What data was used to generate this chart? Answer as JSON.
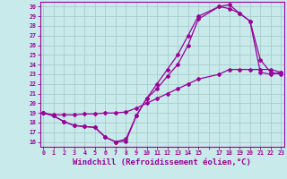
{
  "background_color": "#c8eaea",
  "grid_color": "#aacccc",
  "line_color": "#990099",
  "xlabel": "Windchill (Refroidissement éolien,°C)",
  "xlabel_fontsize": 6.5,
  "ytick_labels": [
    "16",
    "17",
    "18",
    "19",
    "20",
    "21",
    "22",
    "23",
    "24",
    "25",
    "26",
    "27",
    "28",
    "29",
    "30"
  ],
  "ytick_values": [
    16,
    17,
    18,
    19,
    20,
    21,
    22,
    23,
    24,
    25,
    26,
    27,
    28,
    29,
    30
  ],
  "xtick_labels": [
    "0",
    "1",
    "2",
    "3",
    "4",
    "5",
    "6",
    "7",
    "8",
    "9",
    "10",
    "11",
    "12",
    "13",
    "14",
    "15",
    "",
    "17",
    "18",
    "19",
    "20",
    "21",
    "22",
    "23"
  ],
  "xlim": [
    -0.3,
    23.3
  ],
  "ylim": [
    15.5,
    30.5
  ],
  "curve1_x": [
    0,
    1,
    2,
    3,
    4,
    5,
    6,
    7,
    8,
    9,
    10,
    11,
    12,
    13,
    14,
    15,
    17,
    18,
    19,
    20,
    21,
    22,
    23
  ],
  "curve1_y": [
    19,
    18.7,
    18.1,
    17.7,
    17.6,
    17.5,
    16.5,
    16.0,
    16.1,
    18.7,
    20.5,
    22.0,
    23.5,
    25.0,
    27.0,
    29.0,
    30.0,
    29.8,
    29.3,
    28.5,
    24.5,
    23.2,
    23.0
  ],
  "curve2_x": [
    0,
    1,
    2,
    3,
    4,
    5,
    6,
    7,
    8,
    9,
    10,
    11,
    12,
    13,
    14,
    15,
    17,
    18,
    19,
    20,
    21,
    22,
    23
  ],
  "curve2_y": [
    19.0,
    18.7,
    18.1,
    17.7,
    17.6,
    17.5,
    16.5,
    16.0,
    16.3,
    18.7,
    20.5,
    21.5,
    22.8,
    24.0,
    26.0,
    28.7,
    30.0,
    30.2,
    29.3,
    28.5,
    23.2,
    23.0,
    23.2
  ],
  "curve3_x": [
    0,
    1,
    2,
    3,
    4,
    5,
    6,
    7,
    8,
    9,
    10,
    11,
    12,
    13,
    14,
    15,
    17,
    18,
    19,
    20,
    21,
    22,
    23
  ],
  "curve3_y": [
    19.0,
    18.8,
    18.8,
    18.8,
    18.9,
    18.9,
    19.0,
    19.0,
    19.1,
    19.5,
    20.0,
    20.5,
    21.0,
    21.5,
    22.0,
    22.5,
    23.0,
    23.5,
    23.5,
    23.5,
    23.5,
    23.5,
    23.2
  ],
  "marker": "D",
  "markersize": 2.0,
  "linewidth": 0.9
}
